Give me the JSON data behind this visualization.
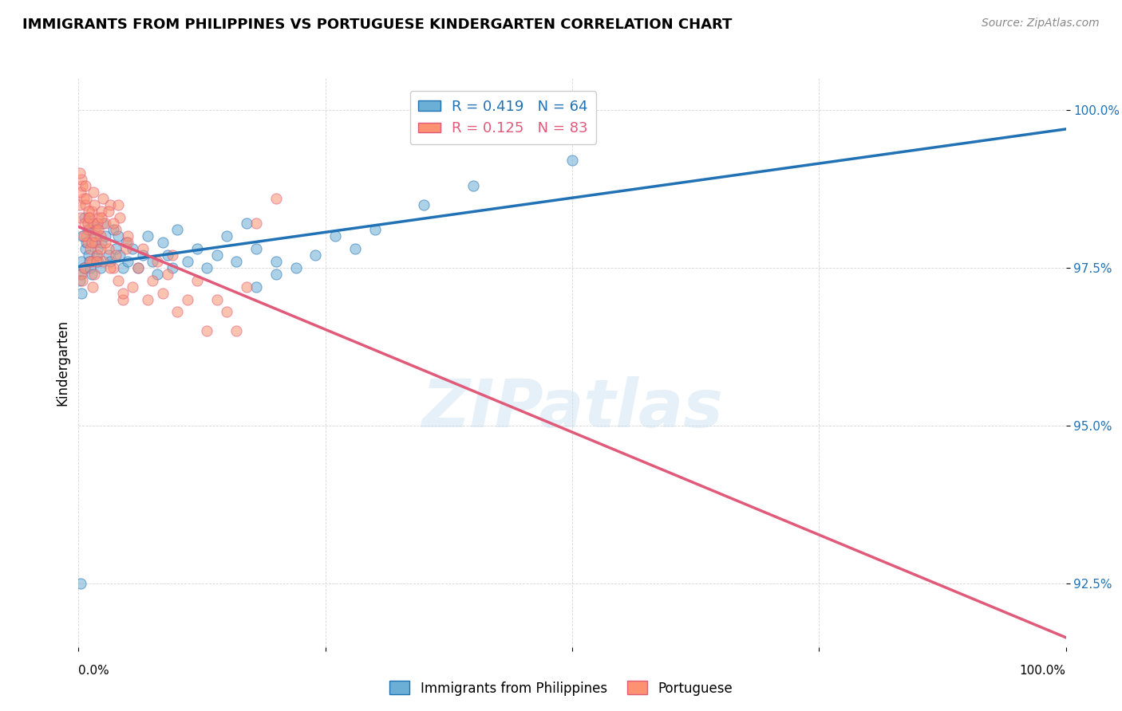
{
  "title": "IMMIGRANTS FROM PHILIPPINES VS PORTUGUESE KINDERGARTEN CORRELATION CHART",
  "source": "Source: ZipAtlas.com",
  "ylabel": "Kindergarten",
  "legend_blue_label": "Immigrants from Philippines",
  "legend_pink_label": "Portuguese",
  "R_blue": 0.419,
  "N_blue": 64,
  "R_pink": 0.125,
  "N_pink": 83,
  "blue_color": "#6baed6",
  "pink_color": "#fc9272",
  "blue_line_color": "#2171b5",
  "pink_line_color": "#e05a7a",
  "blue_scatter": [
    [
      0.002,
      97.4
    ],
    [
      0.003,
      97.6
    ],
    [
      0.004,
      98.0
    ],
    [
      0.005,
      97.5
    ],
    [
      0.006,
      98.3
    ],
    [
      0.007,
      97.8
    ],
    [
      0.008,
      97.9
    ],
    [
      0.009,
      98.1
    ],
    [
      0.01,
      97.7
    ],
    [
      0.011,
      97.6
    ],
    [
      0.012,
      97.5
    ],
    [
      0.013,
      97.4
    ],
    [
      0.014,
      98.2
    ],
    [
      0.015,
      98.0
    ],
    [
      0.016,
      97.9
    ],
    [
      0.017,
      98.1
    ],
    [
      0.018,
      97.7
    ],
    [
      0.019,
      97.8
    ],
    [
      0.02,
      97.6
    ],
    [
      0.022,
      97.5
    ],
    [
      0.023,
      97.9
    ],
    [
      0.025,
      98.2
    ],
    [
      0.027,
      98.0
    ],
    [
      0.03,
      97.7
    ],
    [
      0.032,
      97.6
    ],
    [
      0.035,
      98.1
    ],
    [
      0.038,
      97.8
    ],
    [
      0.04,
      98.0
    ],
    [
      0.042,
      97.7
    ],
    [
      0.045,
      97.5
    ],
    [
      0.048,
      97.9
    ],
    [
      0.05,
      97.6
    ],
    [
      0.055,
      97.8
    ],
    [
      0.06,
      97.5
    ],
    [
      0.065,
      97.7
    ],
    [
      0.07,
      98.0
    ],
    [
      0.075,
      97.6
    ],
    [
      0.08,
      97.4
    ],
    [
      0.085,
      97.9
    ],
    [
      0.09,
      97.7
    ],
    [
      0.095,
      97.5
    ],
    [
      0.1,
      98.1
    ],
    [
      0.11,
      97.6
    ],
    [
      0.12,
      97.8
    ],
    [
      0.13,
      97.5
    ],
    [
      0.14,
      97.7
    ],
    [
      0.15,
      98.0
    ],
    [
      0.16,
      97.6
    ],
    [
      0.17,
      98.2
    ],
    [
      0.18,
      97.8
    ],
    [
      0.2,
      97.6
    ],
    [
      0.22,
      97.5
    ],
    [
      0.24,
      97.7
    ],
    [
      0.26,
      98.0
    ],
    [
      0.28,
      97.8
    ],
    [
      0.3,
      98.1
    ],
    [
      0.001,
      97.3
    ],
    [
      0.002,
      92.5
    ],
    [
      0.2,
      97.4
    ],
    [
      0.18,
      97.2
    ],
    [
      0.003,
      97.1
    ],
    [
      0.35,
      98.5
    ],
    [
      0.4,
      98.8
    ],
    [
      0.5,
      99.2
    ]
  ],
  "pink_scatter": [
    [
      0.001,
      98.5
    ],
    [
      0.002,
      98.3
    ],
    [
      0.003,
      97.4
    ],
    [
      0.004,
      98.8
    ],
    [
      0.005,
      98.6
    ],
    [
      0.006,
      98.2
    ],
    [
      0.007,
      98.5
    ],
    [
      0.008,
      98.0
    ],
    [
      0.009,
      97.9
    ],
    [
      0.01,
      98.3
    ],
    [
      0.011,
      98.1
    ],
    [
      0.012,
      97.8
    ],
    [
      0.013,
      98.4
    ],
    [
      0.014,
      97.6
    ],
    [
      0.015,
      98.2
    ],
    [
      0.016,
      98.5
    ],
    [
      0.017,
      97.9
    ],
    [
      0.018,
      98.1
    ],
    [
      0.019,
      97.7
    ],
    [
      0.02,
      98.3
    ],
    [
      0.022,
      98.0
    ],
    [
      0.023,
      98.4
    ],
    [
      0.025,
      97.6
    ],
    [
      0.027,
      98.2
    ],
    [
      0.03,
      97.8
    ],
    [
      0.032,
      98.5
    ],
    [
      0.035,
      97.5
    ],
    [
      0.038,
      98.1
    ],
    [
      0.04,
      97.3
    ],
    [
      0.042,
      98.3
    ],
    [
      0.045,
      97.0
    ],
    [
      0.048,
      97.8
    ],
    [
      0.05,
      98.0
    ],
    [
      0.055,
      97.2
    ],
    [
      0.06,
      97.5
    ],
    [
      0.065,
      97.8
    ],
    [
      0.07,
      97.0
    ],
    [
      0.075,
      97.3
    ],
    [
      0.08,
      97.6
    ],
    [
      0.085,
      97.1
    ],
    [
      0.09,
      97.4
    ],
    [
      0.095,
      97.7
    ],
    [
      0.1,
      96.8
    ],
    [
      0.11,
      97.0
    ],
    [
      0.12,
      97.3
    ],
    [
      0.13,
      96.5
    ],
    [
      0.14,
      97.0
    ],
    [
      0.15,
      96.8
    ],
    [
      0.16,
      96.5
    ],
    [
      0.17,
      97.2
    ],
    [
      0.002,
      98.7
    ],
    [
      0.003,
      98.9
    ],
    [
      0.004,
      97.3
    ],
    [
      0.005,
      98.0
    ],
    [
      0.006,
      97.5
    ],
    [
      0.007,
      98.8
    ],
    [
      0.008,
      98.6
    ],
    [
      0.009,
      98.2
    ],
    [
      0.01,
      98.4
    ],
    [
      0.011,
      98.3
    ],
    [
      0.012,
      97.6
    ],
    [
      0.013,
      97.9
    ],
    [
      0.014,
      97.2
    ],
    [
      0.015,
      98.7
    ],
    [
      0.016,
      97.4
    ],
    [
      0.017,
      98.0
    ],
    [
      0.018,
      97.6
    ],
    [
      0.019,
      98.2
    ],
    [
      0.02,
      98.1
    ],
    [
      0.022,
      97.8
    ],
    [
      0.023,
      98.3
    ],
    [
      0.025,
      98.6
    ],
    [
      0.027,
      97.9
    ],
    [
      0.03,
      98.4
    ],
    [
      0.032,
      97.5
    ],
    [
      0.035,
      98.2
    ],
    [
      0.038,
      97.7
    ],
    [
      0.04,
      98.5
    ],
    [
      0.045,
      97.1
    ],
    [
      0.05,
      97.9
    ],
    [
      0.18,
      98.2
    ],
    [
      0.2,
      98.6
    ],
    [
      0.001,
      99.0
    ]
  ],
  "xmin": 0.0,
  "xmax": 1.0,
  "ymin": 91.5,
  "ymax": 100.5,
  "yticks": [
    92.5,
    95.0,
    97.5,
    100.0
  ],
  "ytick_labels": [
    "92.5%",
    "95.0%",
    "97.5%",
    "100.0%"
  ]
}
